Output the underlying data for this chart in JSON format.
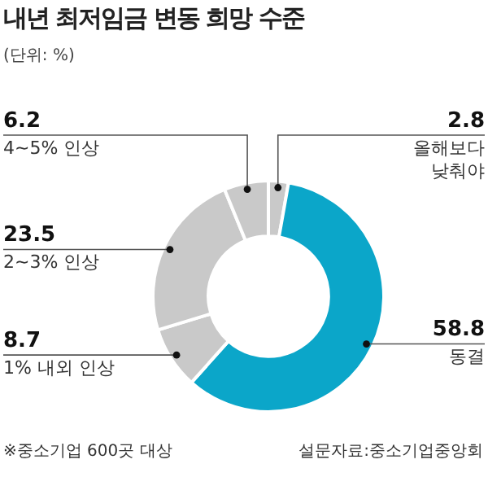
{
  "chart_data": {
    "type": "donut",
    "title": "내년 최저임금 변동 희망 수준",
    "subtitle": "(단위: %)",
    "categories": [
      "올해보다 낮춰야",
      "동결",
      "1% 내외 인상",
      "2~3% 인상",
      "4~5% 인상"
    ],
    "values": [
      2.8,
      58.8,
      8.7,
      23.5,
      6.2
    ],
    "colors": [
      "#c9c9c9",
      "#0ba6c9",
      "#c9c9c9",
      "#c9c9c9",
      "#c9c9c9"
    ],
    "data_labels": true,
    "legend": false,
    "annotations": [
      "※중소기업 600곳 대상",
      "설문자료:중소기업중앙회"
    ]
  }
}
